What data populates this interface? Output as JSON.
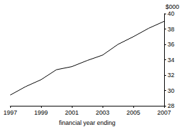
{
  "chart_data": {
    "type": "line",
    "x": [
      1997,
      1998,
      1999,
      2000,
      2001,
      2002,
      2003,
      2004,
      2005,
      2006,
      2007
    ],
    "values": [
      29.4,
      30.5,
      31.4,
      32.7,
      33.1,
      33.9,
      34.6,
      36.0,
      37.0,
      38.1,
      39.0
    ],
    "color": "#000000",
    "x_label": "financial year ending",
    "y_label": "$000",
    "xlim": [
      1997,
      2007
    ],
    "xticks": [
      1997,
      1999,
      2001,
      2003,
      2005,
      2007
    ],
    "ylim": [
      28,
      40
    ],
    "yticks": [
      28,
      30,
      32,
      34,
      36,
      38,
      40
    ],
    "grid": false
  }
}
